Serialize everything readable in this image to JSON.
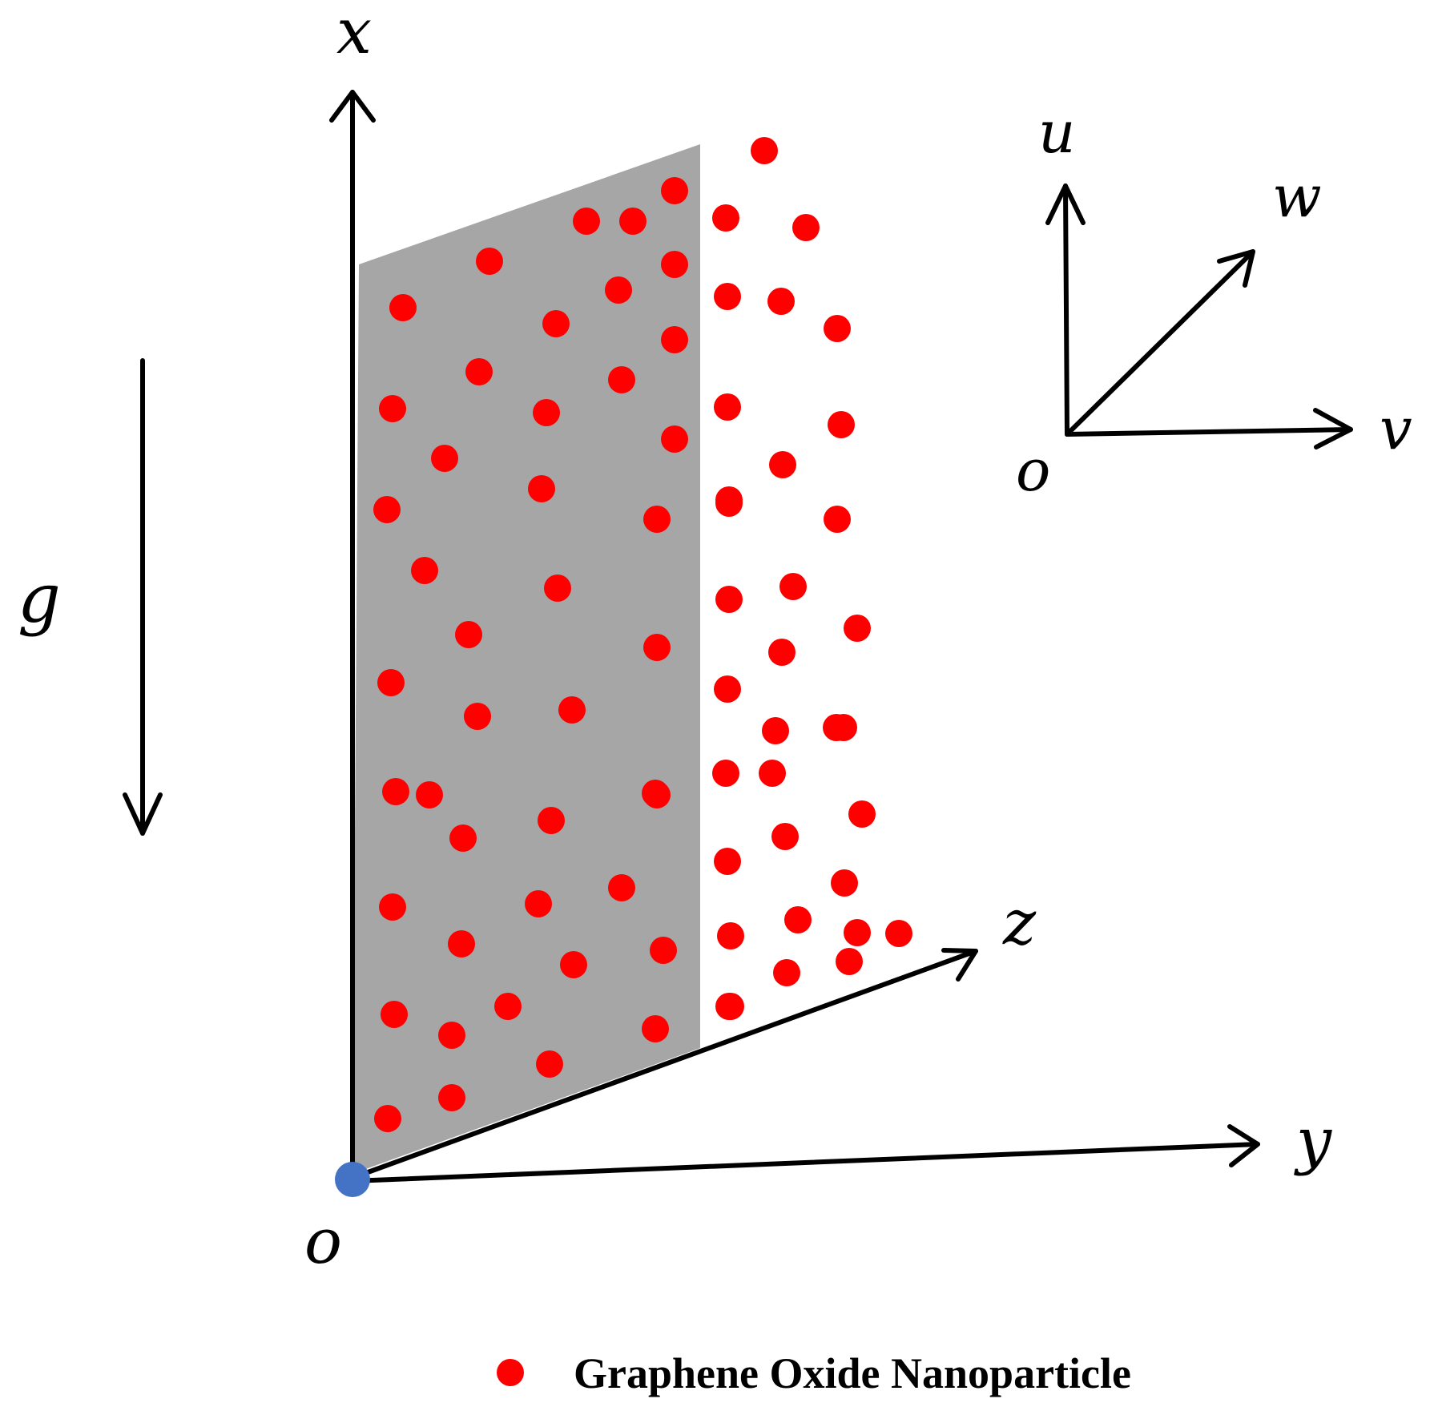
{
  "labels": {
    "x_axis": "x",
    "y_axis": "y",
    "z_axis": "z",
    "gravity": "g",
    "origin_main": "o",
    "u": "u",
    "v": "v",
    "w": "w",
    "origin_inset": "o"
  },
  "legend": {
    "text": "Graphene Oxide Nanoparticle"
  },
  "colors": {
    "particle": "#ff0000",
    "sheet": "#a6a6a6",
    "origin_dot": "#4472c4",
    "axis": "#000000"
  }
}
